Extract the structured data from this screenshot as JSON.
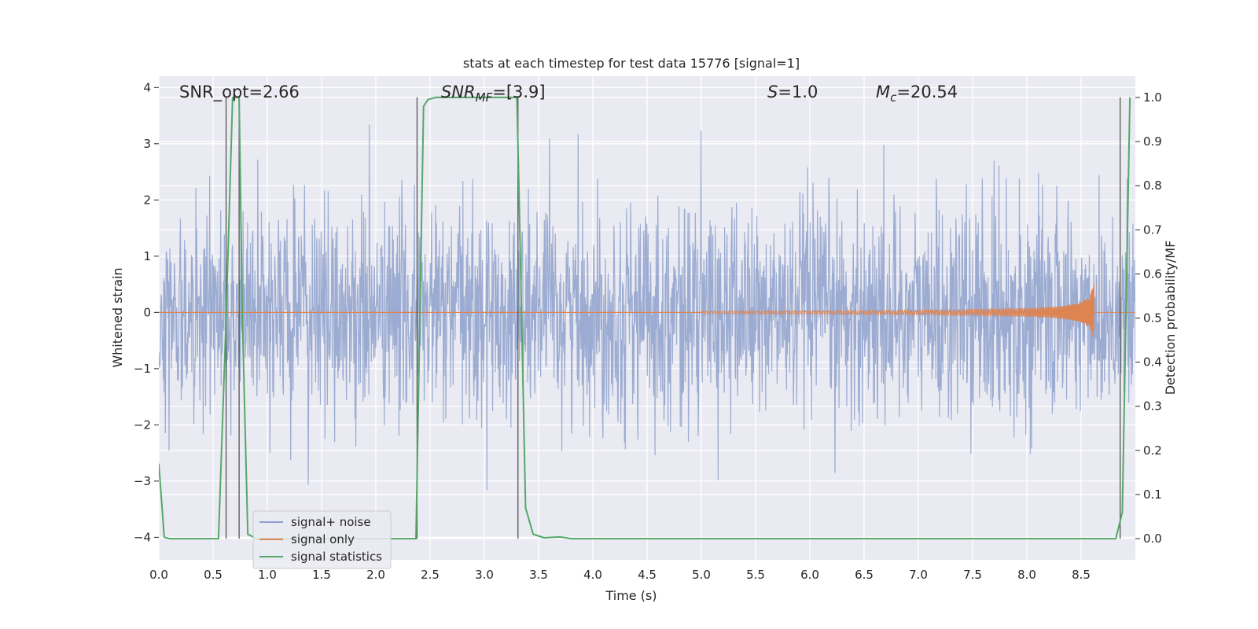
{
  "chart_data": {
    "type": "line",
    "title": "stats at each timestep for test data 15776 [signal=1]",
    "xlabel": "Time (s)",
    "ylabel_left": "Whitened strain",
    "ylabel_right": "Detection probability/MF",
    "xlim": [
      0,
      9.0
    ],
    "ylim_left": [
      -4.4,
      4.2
    ],
    "ylim_right": [
      -0.048,
      1.048
    ],
    "grid": true,
    "legend_position": "lower-left",
    "x_ticks": [
      "0.0",
      "0.5",
      "1.0",
      "1.5",
      "2.0",
      "2.5",
      "3.0",
      "3.5",
      "4.0",
      "4.5",
      "5.0",
      "5.5",
      "6.0",
      "6.5",
      "7.0",
      "7.5",
      "8.0",
      "8.5"
    ],
    "y_ticks_left": [
      "−4",
      "−3",
      "−2",
      "−1",
      "0",
      "1",
      "2",
      "3",
      "4"
    ],
    "y_ticks_right": [
      "0.0",
      "0.1",
      "0.2",
      "0.3",
      "0.4",
      "0.5",
      "0.6",
      "0.7",
      "0.8",
      "0.9",
      "1.0"
    ],
    "annotations": {
      "snr_opt": "SNR_opt=2.66",
      "snr_mf_pre": "SNR",
      "snr_mf_sub": "MF",
      "snr_mf_post": "=[3.9]",
      "s_sym": "S",
      "s_val": "=1.0",
      "mc_sym": "M",
      "mc_sub": "c",
      "mc_val": "=20.54"
    },
    "series": [
      {
        "name": "signal+ noise",
        "color": "#8da0cb",
        "description_axis": "left",
        "noise_envelope_typical": [
          -2.0,
          2.2
        ],
        "peak_range": [
          -4.0,
          3.8
        ]
      },
      {
        "name": "signal only",
        "color": "#dd8452",
        "axis": "left",
        "chirp_peak_time": 8.62,
        "chirp_peak_amplitude": 0.6
      },
      {
        "name": "signal statistics",
        "color": "#55a868",
        "axis": "right",
        "x": [
          0.0,
          0.05,
          0.1,
          0.55,
          0.62,
          0.68,
          0.7,
          0.74,
          0.77,
          0.82,
          0.9,
          2.37,
          2.44,
          2.48,
          2.55,
          3.3,
          3.32,
          3.38,
          3.45,
          3.55,
          3.7,
          3.8,
          8.82,
          8.88,
          8.95
        ],
        "values": [
          0.17,
          0.003,
          0.0,
          0.0,
          0.5,
          0.999,
          1.0,
          1.0,
          0.5,
          0.01,
          0.0,
          0.0,
          0.98,
          0.995,
          1.0,
          1.0,
          0.78,
          0.07,
          0.01,
          0.002,
          0.004,
          0.0,
          0.0,
          0.06,
          1.0
        ]
      }
    ],
    "vertical_lines_x": [
      0.62,
      0.74,
      2.38,
      3.31,
      8.86
    ]
  }
}
